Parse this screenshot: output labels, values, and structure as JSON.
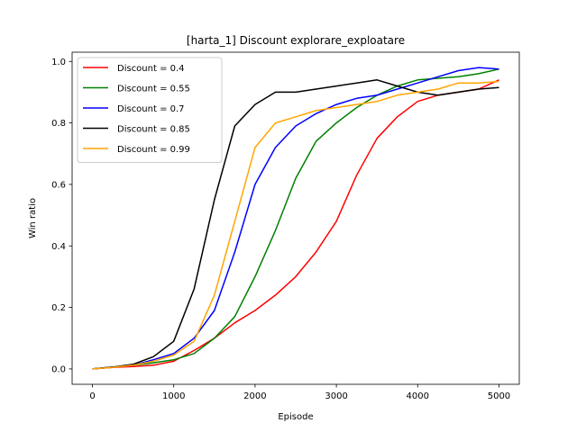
{
  "chart_data": {
    "type": "line",
    "title": "[harta_1] Discount  explorare_exploatare",
    "xlabel": "Episode",
    "ylabel": "Win ratio",
    "xlim": [
      -250,
      5250
    ],
    "ylim": [
      -0.05,
      1.03
    ],
    "xticks": [
      0,
      1000,
      2000,
      3000,
      4000,
      5000
    ],
    "xtick_labels": [
      "0",
      "1000",
      "2000",
      "3000",
      "4000",
      "5000"
    ],
    "yticks": [
      0.0,
      0.2,
      0.4,
      0.6,
      0.8,
      1.0
    ],
    "ytick_labels": [
      "0.0",
      "0.2",
      "0.4",
      "0.6",
      "0.8",
      "1.0"
    ],
    "grid": false,
    "legend_position": "upper-left",
    "series": [
      {
        "name": "Discount = 0.4",
        "color": "#ff0000",
        "x": [
          0,
          250,
          500,
          750,
          1000,
          1250,
          1500,
          1750,
          2000,
          2250,
          2500,
          2750,
          3000,
          3250,
          3500,
          3750,
          4000,
          4250,
          4500,
          4750,
          5000
        ],
        "y": [
          0.0,
          0.005,
          0.008,
          0.012,
          0.025,
          0.06,
          0.1,
          0.15,
          0.19,
          0.24,
          0.3,
          0.38,
          0.48,
          0.63,
          0.75,
          0.82,
          0.87,
          0.89,
          0.9,
          0.91,
          0.94
        ]
      },
      {
        "name": "Discount = 0.55",
        "color": "#008000",
        "x": [
          0,
          250,
          500,
          750,
          1000,
          1250,
          1500,
          1750,
          2000,
          2250,
          2500,
          2750,
          3000,
          3250,
          3500,
          3750,
          4000,
          4250,
          4500,
          4750,
          5000
        ],
        "y": [
          0.0,
          0.006,
          0.012,
          0.02,
          0.03,
          0.05,
          0.1,
          0.17,
          0.3,
          0.45,
          0.62,
          0.74,
          0.8,
          0.85,
          0.89,
          0.92,
          0.94,
          0.945,
          0.95,
          0.96,
          0.975
        ]
      },
      {
        "name": "Discount = 0.7",
        "color": "#0000ff",
        "x": [
          0,
          250,
          500,
          750,
          1000,
          1250,
          1500,
          1750,
          2000,
          2250,
          2500,
          2750,
          3000,
          3250,
          3500,
          3750,
          4000,
          4250,
          4500,
          4750,
          5000
        ],
        "y": [
          0.0,
          0.006,
          0.012,
          0.03,
          0.05,
          0.1,
          0.19,
          0.38,
          0.6,
          0.72,
          0.79,
          0.83,
          0.86,
          0.88,
          0.89,
          0.91,
          0.93,
          0.95,
          0.97,
          0.98,
          0.975
        ]
      },
      {
        "name": "Discount = 0.85",
        "color": "#000000",
        "x": [
          0,
          250,
          500,
          750,
          1000,
          1250,
          1500,
          1750,
          2000,
          2250,
          2500,
          2750,
          3000,
          3250,
          3500,
          3750,
          4000,
          4250,
          4500,
          4750,
          5000
        ],
        "y": [
          0.0,
          0.006,
          0.015,
          0.04,
          0.09,
          0.26,
          0.55,
          0.79,
          0.86,
          0.9,
          0.9,
          0.91,
          0.92,
          0.93,
          0.94,
          0.92,
          0.9,
          0.89,
          0.9,
          0.91,
          0.915
        ]
      },
      {
        "name": "Discount = 0.99",
        "color": "#ffa500",
        "x": [
          0,
          250,
          500,
          750,
          1000,
          1250,
          1500,
          1750,
          2000,
          2250,
          2500,
          2750,
          3000,
          3250,
          3500,
          3750,
          4000,
          4250,
          4500,
          4750,
          5000
        ],
        "y": [
          0.0,
          0.005,
          0.012,
          0.025,
          0.045,
          0.09,
          0.24,
          0.48,
          0.72,
          0.8,
          0.82,
          0.84,
          0.85,
          0.86,
          0.87,
          0.89,
          0.9,
          0.91,
          0.93,
          0.93,
          0.935
        ]
      }
    ]
  }
}
